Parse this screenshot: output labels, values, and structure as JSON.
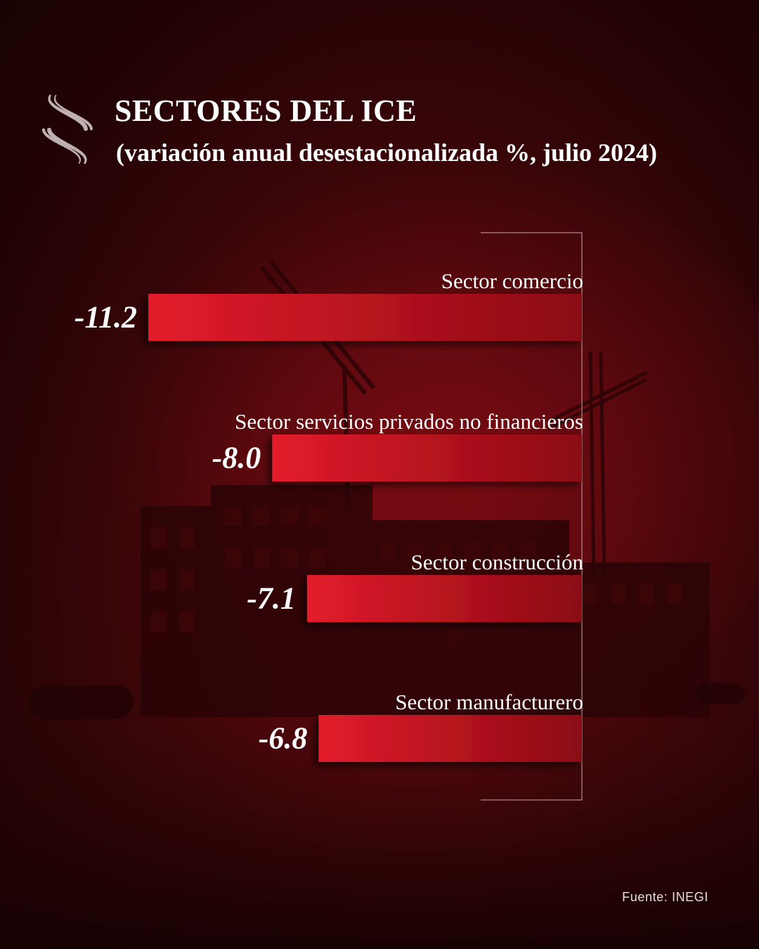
{
  "header": {
    "title": "SECTORES DEL ICE",
    "subtitle": "(variación anual desestacionalizada %, julio 2024)"
  },
  "colors": {
    "background": "#3e0609",
    "bar_left": "#e31c2c",
    "bar_right": "#8a0a12",
    "axis": "#c9a7a9",
    "text": "#ffffff"
  },
  "icons": {
    "logo": "dotted-s-logo-icon"
  },
  "chart_data": {
    "type": "bar",
    "orientation": "horizontal",
    "title": "SECTORES DEL ICE",
    "subtitle": "(variación anual desestacionalizada %, julio 2024)",
    "categories": [
      "Sector comercio",
      "Sector servicios privados no financieros",
      "Sector construcción",
      "Sector manufacturero"
    ],
    "values": [
      -11.2,
      -8.0,
      -7.1,
      -6.8
    ],
    "value_labels": [
      "-11.2",
      "-8.0",
      "-7.1",
      "-6.8"
    ],
    "xlim": [
      -11.2,
      0
    ],
    "grid": false,
    "legend": "none"
  },
  "footer": {
    "source": "Fuente: INEGI"
  }
}
